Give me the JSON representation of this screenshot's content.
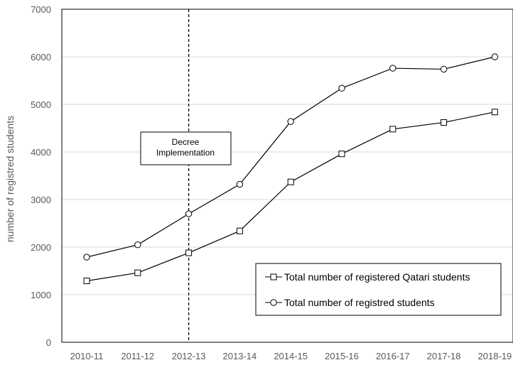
{
  "chart_data": {
    "type": "line",
    "categories": [
      "2010-11",
      "2011-12",
      "2012-13",
      "2013-14",
      "2014-15",
      "2015-16",
      "2016-17",
      "2017-18",
      "2018-19"
    ],
    "series": [
      {
        "name": "Total number of registered Qatari students",
        "marker": "square",
        "values": [
          1290,
          1460,
          1880,
          2340,
          3370,
          3960,
          4480,
          4620,
          4840
        ]
      },
      {
        "name": "Total number of registred students",
        "marker": "circle",
        "values": [
          1790,
          2050,
          2700,
          3320,
          4640,
          5340,
          5760,
          5740,
          6000
        ]
      }
    ],
    "ylabel": "number of registred  students",
    "ylim": [
      0,
      7000
    ],
    "yticks": [
      0,
      1000,
      2000,
      3000,
      4000,
      5000,
      6000,
      7000
    ],
    "grid": "horizontal",
    "legend_position": "bottom-right",
    "annotation": {
      "category": "2012-13",
      "line1": "Decree",
      "line2": "Implementation",
      "style": "dashed-vertical"
    }
  }
}
